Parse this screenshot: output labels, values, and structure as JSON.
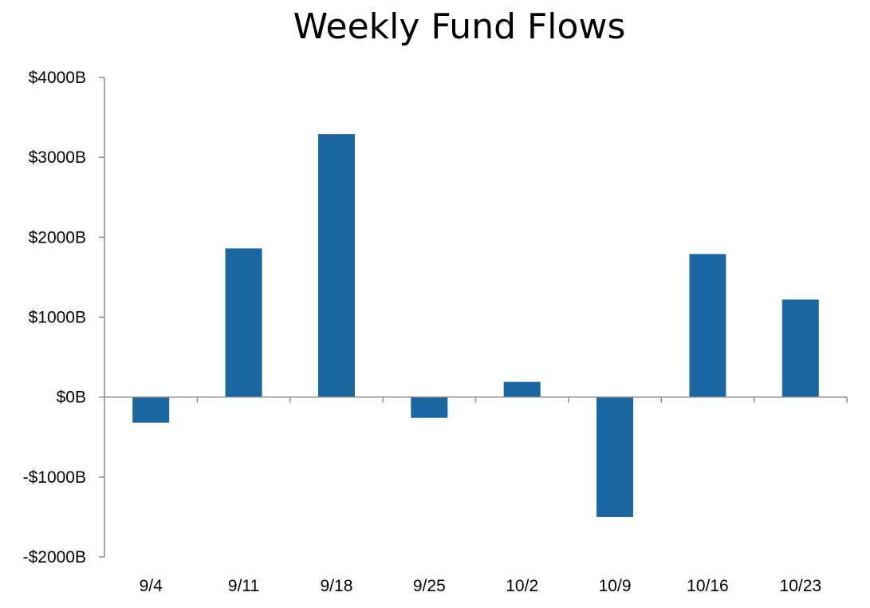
{
  "chart_data": {
    "type": "bar",
    "title": "Weekly Fund Flows",
    "categories": [
      "9/4",
      "9/11",
      "9/18",
      "9/25",
      "10/2",
      "10/9",
      "10/16",
      "10/23"
    ],
    "series": [
      {
        "values": [
          -320,
          1860,
          3290,
          -260,
          190,
          -1500,
          1790,
          1220
        ]
      }
    ],
    "yticks": [
      -2000,
      -1000,
      0,
      1000,
      2000,
      3000,
      4000
    ],
    "ytick_labels": [
      "-$2000B",
      "-$1000B",
      "$0B",
      "$1000B",
      "$2000B",
      "$3000B",
      "$4000B"
    ],
    "ylim": [
      -2000,
      4000
    ],
    "xlabel": "",
    "ylabel": "",
    "grid": false,
    "bar_color": "#1b66a1",
    "axis_color": "#8c8c8c"
  }
}
